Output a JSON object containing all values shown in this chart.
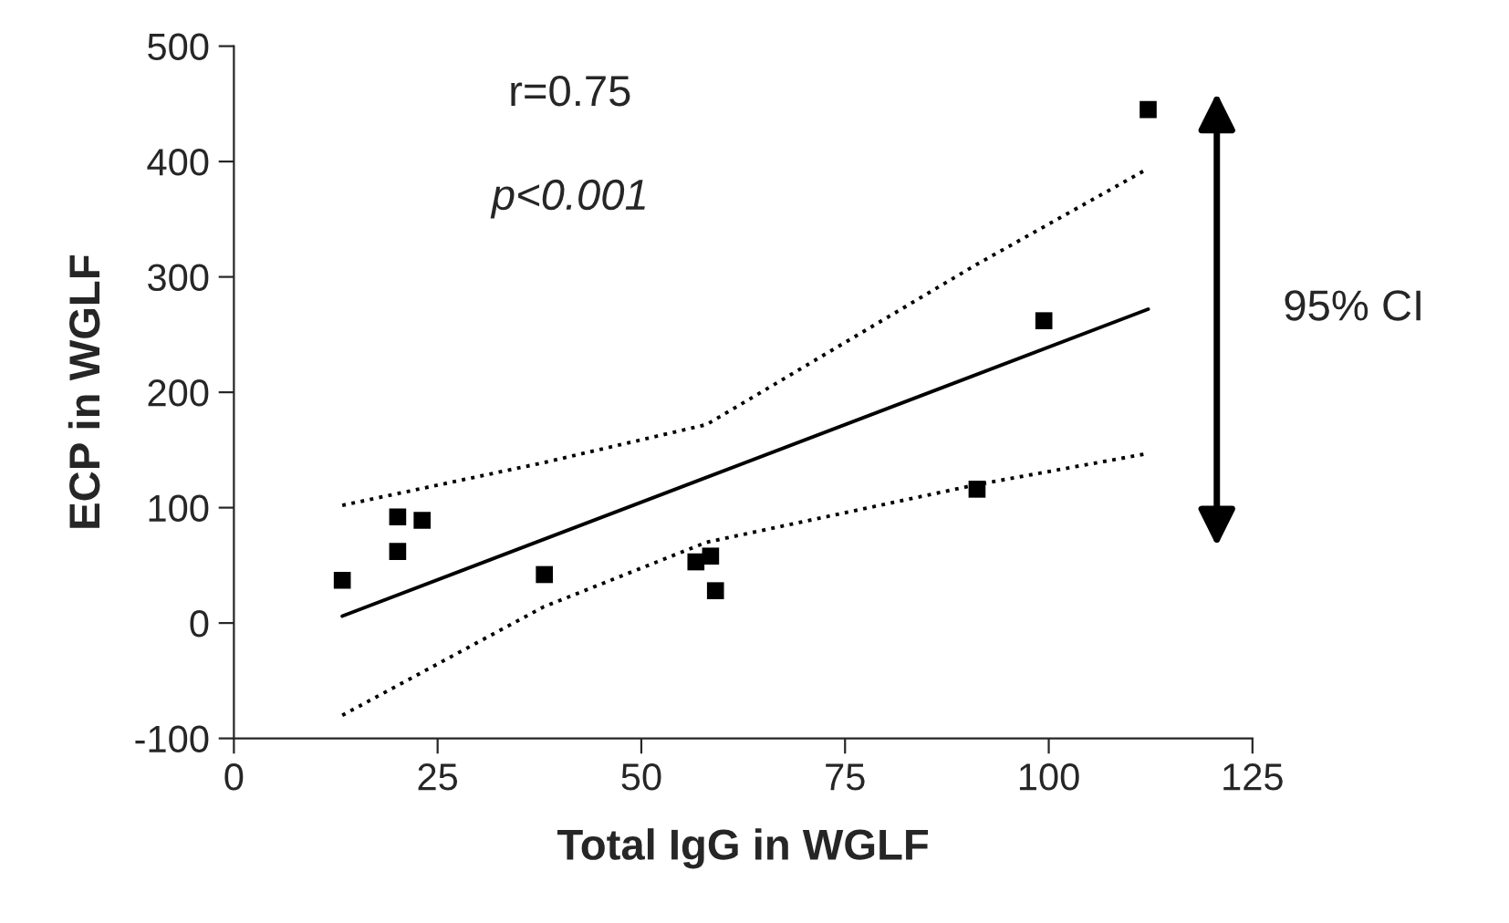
{
  "chart_data": {
    "type": "scatter",
    "xlabel": "Total IgG in WGLF",
    "ylabel": "ECP in WGLF",
    "xlim": [
      0,
      125
    ],
    "xticks": [
      0,
      25,
      50,
      75,
      100,
      125
    ],
    "ylim": [
      -100,
      500
    ],
    "yticks": [
      -100,
      0,
      100,
      200,
      300,
      400,
      500
    ],
    "grid": false,
    "marker": "square",
    "series": [
      {
        "color": "#000000",
        "x": [
          13.3,
          20.1,
          20.1,
          23.1,
          38.1,
          56.7,
          58.5,
          59.1,
          91.2,
          99.4,
          112.2
        ],
        "values": [
          37,
          92,
          62,
          89,
          42,
          53,
          58,
          28,
          116,
          262,
          445
        ]
      },
      {
        "type": "line",
        "color": "#000000",
        "line_style": "solid",
        "marker": "none",
        "x": [
          13.3,
          112.2
        ],
        "values": [
          6,
          272
        ]
      },
      {
        "type": "line",
        "color": "#000000",
        "line_style": "dotted",
        "marker": "none",
        "x": [
          13.3,
          38,
          58,
          91.2,
          112.2
        ],
        "values": [
          102,
          139,
          172,
          311,
          394
        ]
      },
      {
        "type": "line",
        "color": "#000000",
        "line_style": "dotted",
        "marker": "none",
        "x": [
          13.3,
          38,
          58,
          91.2,
          112.2
        ],
        "values": [
          -80,
          14,
          70,
          120,
          147
        ]
      }
    ],
    "annotations": [
      "r=0.75",
      "p<0.001",
      "95% CI"
    ]
  }
}
